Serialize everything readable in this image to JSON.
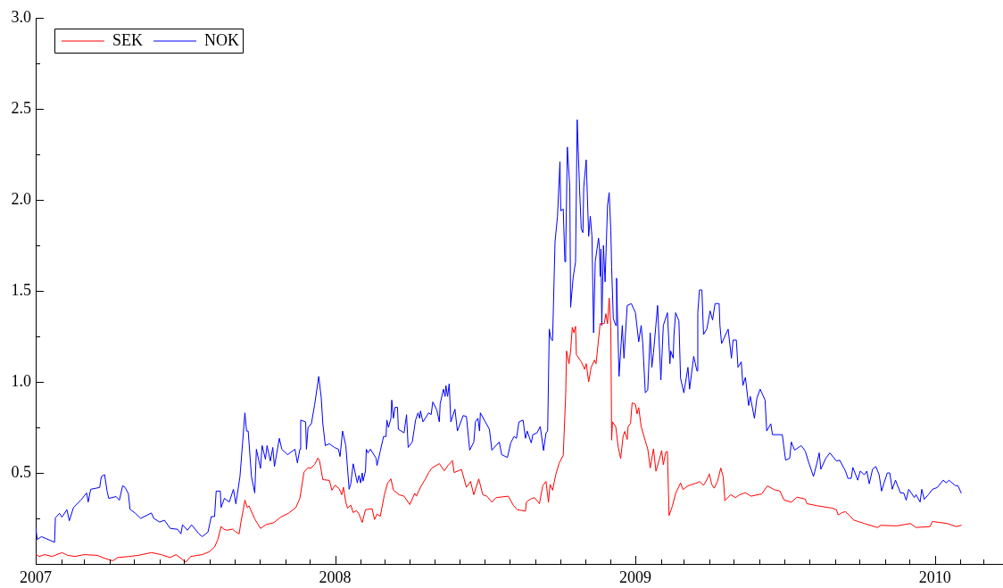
{
  "chart_data": {
    "type": "line",
    "series": [
      {
        "name": "SEK",
        "color": "#ff0000",
        "x": [
          "2007-01-01",
          "2007-01-05",
          "2007-01-12",
          "2007-01-21",
          "2007-02-02",
          "2007-02-09",
          "2007-02-18",
          "2007-03-01",
          "2007-03-17",
          "2007-03-26",
          "2007-04-05",
          "2007-04-11",
          "2007-04-25",
          "2007-05-06",
          "2007-05-22",
          "2007-06-03",
          "2007-06-14",
          "2007-06-21",
          "2007-07-03",
          "2007-07-09",
          "2007-07-23",
          "2007-08-01",
          "2007-08-07",
          "2007-08-11",
          "2007-08-15",
          "2007-08-18",
          "2007-08-22",
          "2007-08-29",
          "2007-09-01",
          "2007-09-06",
          "2007-09-08",
          "2007-09-11",
          "2007-09-13",
          "2007-09-16",
          "2007-09-18",
          "2007-09-25",
          "2007-10-02",
          "2007-10-09",
          "2007-10-18",
          "2007-10-27",
          "2007-11-05",
          "2007-11-14",
          "2007-11-19",
          "2007-11-24",
          "2007-11-29",
          "2007-12-02",
          "2007-12-07",
          "2007-12-11",
          "2007-12-13",
          "2007-12-17",
          "2007-12-25",
          "2007-12-28",
          "2008-01-01",
          "2008-01-06",
          "2008-01-09",
          "2008-01-11",
          "2008-01-14",
          "2008-01-16",
          "2008-01-20",
          "2008-01-23",
          "2008-01-27",
          "2008-01-30",
          "2008-02-03",
          "2008-02-07",
          "2008-02-15",
          "2008-02-18",
          "2008-02-21",
          "2008-02-25",
          "2008-03-01",
          "2008-03-05",
          "2008-03-09",
          "2008-03-12",
          "2008-03-19",
          "2008-03-25",
          "2008-04-01",
          "2008-04-07",
          "2008-04-09",
          "2008-04-14",
          "2008-04-20",
          "2008-04-24",
          "2008-04-28",
          "2008-05-07",
          "2008-05-13",
          "2008-05-18",
          "2008-05-23",
          "2008-05-25",
          "2008-06-03",
          "2008-06-09",
          "2008-06-14",
          "2008-06-18",
          "2008-06-24",
          "2008-06-29",
          "2008-07-04",
          "2008-07-10",
          "2008-07-15",
          "2008-07-30",
          "2008-08-05",
          "2008-08-10",
          "2008-08-20",
          "2008-08-21",
          "2008-08-26",
          "2008-08-31",
          "2008-09-06",
          "2008-09-10",
          "2008-09-14",
          "2008-09-17",
          "2008-09-19",
          "2008-09-22",
          "2008-09-26",
          "2008-09-30",
          "2008-10-05",
          "2008-10-08",
          "2008-10-09",
          "2008-10-12",
          "2008-10-14",
          "2008-10-16",
          "2008-10-18",
          "2008-10-20",
          "2008-10-21",
          "2008-10-27",
          "2008-10-31",
          "2008-11-02",
          "2008-11-05",
          "2008-11-08",
          "2008-11-12",
          "2008-11-14",
          "2008-11-19",
          "2008-11-24",
          "2008-11-26",
          "2008-11-28",
          "2008-11-30",
          "2008-12-02",
          "2008-12-03",
          "2008-12-04",
          "2008-12-08",
          "2008-12-11",
          "2008-12-14",
          "2008-12-17",
          "2008-12-19",
          "2008-12-22",
          "2008-12-23",
          "2008-12-26",
          "2008-12-28",
          "2009-01-01",
          "2009-01-03",
          "2009-01-05",
          "2009-01-08",
          "2009-01-13",
          "2009-01-16",
          "2009-01-19",
          "2009-01-23",
          "2009-01-26",
          "2009-01-30",
          "2009-02-02",
          "2009-02-04",
          "2009-02-07",
          "2009-02-09",
          "2009-02-11",
          "2009-02-15",
          "2009-02-19",
          "2009-02-25",
          "2009-02-28",
          "2009-03-06",
          "2009-03-17",
          "2009-03-20",
          "2009-03-25",
          "2009-03-29",
          "2009-04-01",
          "2009-04-04",
          "2009-04-07",
          "2009-04-11",
          "2009-04-15",
          "2009-04-18",
          "2009-04-20",
          "2009-04-27",
          "2009-05-03",
          "2009-05-08",
          "2009-05-15",
          "2009-05-22",
          "2009-06-04",
          "2009-06-11",
          "2009-06-19",
          "2009-06-26",
          "2009-07-01",
          "2009-07-10",
          "2009-07-17",
          "2009-07-27",
          "2009-07-29",
          "2009-08-10",
          "2009-08-28",
          "2009-09-03",
          "2009-09-05",
          "2009-09-10",
          "2009-09-14",
          "2009-09-19",
          "2009-09-24",
          "2009-10-07",
          "2009-10-23",
          "2009-10-27",
          "2009-11-16",
          "2009-12-02",
          "2009-12-09",
          "2009-12-26",
          "2009-12-29",
          "2010-01-16",
          "2010-01-27",
          "2010-02-02"
        ],
        "values": [
          0.055,
          0.041,
          0.051,
          0.041,
          0.062,
          0.047,
          0.041,
          0.051,
          0.047,
          0.031,
          0.017,
          0.035,
          0.041,
          0.047,
          0.062,
          0.051,
          0.035,
          0.051,
          0.01,
          0.041,
          0.051,
          0.068,
          0.093,
          0.134,
          0.206,
          0.191,
          0.185,
          0.191,
          0.179,
          0.165,
          0.226,
          0.298,
          0.35,
          0.309,
          0.319,
          0.247,
          0.195,
          0.216,
          0.226,
          0.258,
          0.278,
          0.309,
          0.36,
          0.504,
          0.529,
          0.525,
          0.546,
          0.582,
          0.566,
          0.463,
          0.459,
          0.405,
          0.432,
          0.413,
          0.38,
          0.421,
          0.339,
          0.307,
          0.323,
          0.282,
          0.293,
          0.274,
          0.228,
          0.298,
          0.303,
          0.244,
          0.274,
          0.261,
          0.38,
          0.445,
          0.467,
          0.405,
          0.38,
          0.372,
          0.326,
          0.388,
          0.372,
          0.421,
          0.467,
          0.502,
          0.527,
          0.551,
          0.511,
          0.543,
          0.568,
          0.502,
          0.519,
          0.421,
          0.453,
          0.38,
          0.467,
          0.38,
          0.372,
          0.339,
          0.364,
          0.372,
          0.323,
          0.298,
          0.29,
          0.339,
          0.356,
          0.364,
          0.331,
          0.429,
          0.453,
          0.339,
          0.437,
          0.405,
          0.492,
          0.553,
          0.597,
          0.93,
          1.17,
          1.1,
          1.17,
          1.3,
          1.27,
          1.305,
          1.15,
          1.11,
          1.07,
          1.1,
          1.0,
          1.08,
          1.12,
          1.1,
          1.32,
          1.32,
          1.375,
          1.32,
          1.46,
          1.3,
          0.68,
          0.78,
          0.754,
          0.641,
          0.579,
          0.702,
          0.728,
          0.684,
          0.754,
          0.772,
          0.885,
          0.877,
          0.824,
          0.859,
          0.754,
          0.676,
          0.632,
          0.527,
          0.632,
          0.509,
          0.571,
          0.623,
          0.545,
          0.615,
          0.617,
          0.266,
          0.317,
          0.388,
          0.445,
          0.408,
          0.429,
          0.445,
          0.453,
          0.432,
          0.462,
          0.494,
          0.437,
          0.416,
          0.453,
          0.527,
          0.478,
          0.347,
          0.38,
          0.364,
          0.38,
          0.391,
          0.372,
          0.385,
          0.429,
          0.408,
          0.401,
          0.352,
          0.339,
          0.367,
          0.356,
          0.331,
          0.32,
          0.307,
          0.298,
          0.269,
          0.282,
          0.287,
          0.266,
          0.241,
          0.222,
          0.2,
          0.212,
          0.209,
          0.222,
          0.2,
          0.205,
          0.233,
          0.222,
          0.205,
          0.212
        ]
      },
      {
        "name": "NOK",
        "color": "#0000ff",
        "x": [
          "2007-01-01",
          "2007-01-03",
          "2007-01-08",
          "2007-01-24",
          "2007-01-25",
          "2007-01-30",
          "2007-02-02",
          "2007-02-08",
          "2007-02-11",
          "2007-02-16",
          "2007-02-25",
          "2007-03-04",
          "2007-03-06",
          "2007-03-09",
          "2007-03-20",
          "2007-03-22",
          "2007-03-26",
          "2007-03-29",
          "2007-03-31",
          "2007-04-09",
          "2007-04-13",
          "2007-04-17",
          "2007-04-20",
          "2007-04-24",
          "2007-04-26",
          "2007-05-02",
          "2007-05-09",
          "2007-05-22",
          "2007-05-25",
          "2007-06-01",
          "2007-06-07",
          "2007-06-14",
          "2007-06-23",
          "2007-06-27",
          "2007-06-29",
          "2007-07-05",
          "2007-07-10",
          "2007-07-19",
          "2007-07-23",
          "2007-07-30",
          "2007-08-03",
          "2007-08-07",
          "2007-08-09",
          "2007-08-14",
          "2007-08-15",
          "2007-08-19",
          "2007-08-25",
          "2007-08-30",
          "2007-09-02",
          "2007-09-07",
          "2007-09-13",
          "2007-09-15",
          "2007-09-17",
          "2007-09-21",
          "2007-09-25",
          "2007-09-27",
          "2007-10-02",
          "2007-10-04",
          "2007-10-08",
          "2007-10-10",
          "2007-10-14",
          "2007-10-17",
          "2007-10-19",
          "2007-10-25",
          "2007-10-28",
          "2007-11-04",
          "2007-11-13",
          "2007-11-16",
          "2007-11-19",
          "2007-11-20",
          "2007-11-26",
          "2007-11-27",
          "2007-11-29",
          "2007-12-03",
          "2007-12-07",
          "2007-12-12",
          "2007-12-15",
          "2007-12-17",
          "2007-12-20",
          "2007-12-25",
          "2007-12-31",
          "2008-01-05",
          "2008-01-07",
          "2008-01-10",
          "2008-01-14",
          "2008-01-18",
          "2008-01-20",
          "2008-01-23",
          "2008-01-28",
          "2008-01-30",
          "2008-02-01",
          "2008-02-03",
          "2008-02-04",
          "2008-02-07",
          "2008-02-08",
          "2008-02-10",
          "2008-02-13",
          "2008-02-20",
          "2008-02-21",
          "2008-02-25",
          "2008-02-29",
          "2008-03-03",
          "2008-03-04",
          "2008-03-06",
          "2008-03-09",
          "2008-03-10",
          "2008-03-12",
          "2008-03-14",
          "2008-03-17",
          "2008-03-18",
          "2008-03-25",
          "2008-03-28",
          "2008-03-30",
          "2008-04-04",
          "2008-04-08",
          "2008-04-11",
          "2008-04-13",
          "2008-04-14",
          "2008-04-17",
          "2008-04-24",
          "2008-04-27",
          "2008-04-29",
          "2008-05-04",
          "2008-05-07",
          "2008-05-08",
          "2008-05-12",
          "2008-05-14",
          "2008-05-15",
          "2008-05-17",
          "2008-05-19",
          "2008-05-21",
          "2008-05-26",
          "2008-05-29",
          "2008-06-05",
          "2008-06-09",
          "2008-06-13",
          "2008-06-18",
          "2008-06-20",
          "2008-06-23",
          "2008-06-25",
          "2008-06-26",
          "2008-07-02",
          "2008-07-07",
          "2008-07-10",
          "2008-07-19",
          "2008-07-22",
          "2008-07-29",
          "2008-08-02",
          "2008-08-06",
          "2008-08-09",
          "2008-08-12",
          "2008-08-17",
          "2008-08-20",
          "2008-08-22",
          "2008-08-27",
          "2008-08-29",
          "2008-09-03",
          "2008-09-07",
          "2008-09-11",
          "2008-09-14",
          "2008-09-16",
          "2008-09-18",
          "2008-09-20",
          "2008-09-22",
          "2008-09-25",
          "2008-09-28",
          "2008-10-01",
          "2008-10-02",
          "2008-10-05",
          "2008-10-07",
          "2008-10-08",
          "2008-10-10",
          "2008-10-13",
          "2008-10-14",
          "2008-10-17",
          "2008-10-20",
          "2008-10-22",
          "2008-10-25",
          "2008-10-27",
          "2008-10-29",
          "2008-10-30",
          "2008-11-02",
          "2008-11-05",
          "2008-11-07",
          "2008-11-09",
          "2008-11-11",
          "2008-11-13",
          "2008-11-17",
          "2008-11-18",
          "2008-11-19",
          "2008-11-20",
          "2008-11-21",
          "2008-11-23",
          "2008-11-25",
          "2008-11-28",
          "2008-11-30",
          "2008-12-02",
          "2008-12-03",
          "2008-12-05",
          "2008-12-08",
          "2008-12-09",
          "2008-12-12",
          "2008-12-16",
          "2008-12-18",
          "2008-12-22",
          "2008-12-27",
          "2009-01-01",
          "2009-01-05",
          "2009-01-08",
          "2009-01-10",
          "2009-01-13",
          "2009-01-16",
          "2009-01-19",
          "2009-01-21",
          "2009-01-23",
          "2009-01-28",
          "2009-02-01",
          "2009-02-04",
          "2009-02-09",
          "2009-02-12",
          "2009-02-13",
          "2009-02-16",
          "2009-02-17",
          "2009-02-19",
          "2009-02-23",
          "2009-02-25",
          "2009-03-01",
          "2009-03-06",
          "2009-03-08",
          "2009-03-13",
          "2009-03-17",
          "2009-03-18",
          "2009-03-20",
          "2009-03-23",
          "2009-03-25",
          "2009-03-29",
          "2009-04-02",
          "2009-04-05",
          "2009-04-08",
          "2009-04-13",
          "2009-04-14",
          "2009-04-16",
          "2009-04-24",
          "2009-04-28",
          "2009-04-30",
          "2009-05-04",
          "2009-05-06",
          "2009-05-10",
          "2009-05-12",
          "2009-05-15",
          "2009-05-19",
          "2009-05-21",
          "2009-05-26",
          "2009-05-29",
          "2009-06-02",
          "2009-06-08",
          "2009-06-10",
          "2009-06-15",
          "2009-06-17",
          "2009-06-29",
          "2009-07-03",
          "2009-07-08",
          "2009-07-10",
          "2009-07-14",
          "2009-07-22",
          "2009-07-27",
          "2009-07-31",
          "2009-08-06",
          "2009-08-10",
          "2009-08-13",
          "2009-08-15",
          "2009-08-21",
          "2009-08-26",
          "2009-09-03",
          "2009-09-07",
          "2009-09-14",
          "2009-09-17",
          "2009-09-21",
          "2009-09-23",
          "2009-09-29",
          "2009-10-02",
          "2009-10-07",
          "2009-10-10",
          "2009-10-13",
          "2009-10-17",
          "2009-10-21",
          "2009-10-25",
          "2009-10-28",
          "2009-10-31",
          "2009-11-04",
          "2009-11-07",
          "2009-11-10",
          "2009-11-14",
          "2009-11-20",
          "2009-11-24",
          "2009-11-27",
          "2009-11-30",
          "2009-12-07",
          "2009-12-09",
          "2009-12-14",
          "2009-12-16",
          "2009-12-19",
          "2009-12-24",
          "2009-12-29",
          "2010-01-04",
          "2010-01-11",
          "2010-01-15",
          "2010-01-18",
          "2010-01-26",
          "2010-01-29",
          "2010-02-02"
        ],
        "values": [
          0.195,
          0.134,
          0.15,
          0.119,
          0.253,
          0.278,
          0.257,
          0.298,
          0.237,
          0.309,
          0.35,
          0.39,
          0.34,
          0.41,
          0.42,
          0.48,
          0.49,
          0.4,
          0.36,
          0.37,
          0.35,
          0.43,
          0.42,
          0.385,
          0.3,
          0.28,
          0.25,
          0.28,
          0.25,
          0.23,
          0.24,
          0.195,
          0.19,
          0.165,
          0.215,
          0.185,
          0.215,
          0.165,
          0.15,
          0.175,
          0.26,
          0.26,
          0.4,
          0.4,
          0.31,
          0.36,
          0.34,
          0.41,
          0.33,
          0.48,
          0.83,
          0.73,
          0.73,
          0.48,
          0.39,
          0.63,
          0.525,
          0.65,
          0.575,
          0.65,
          0.565,
          0.64,
          0.535,
          0.69,
          0.63,
          0.6,
          0.63,
          0.555,
          0.63,
          0.79,
          0.78,
          0.63,
          0.75,
          0.77,
          0.875,
          1.03,
          0.915,
          0.77,
          0.65,
          0.66,
          0.64,
          0.63,
          0.59,
          0.73,
          0.65,
          0.41,
          0.44,
          0.55,
          0.445,
          0.486,
          0.445,
          0.5,
          0.455,
          0.51,
          0.63,
          0.61,
          0.63,
          0.58,
          0.54,
          0.62,
          0.7,
          0.7,
          0.79,
          0.75,
          0.8,
          0.9,
          0.8,
          0.86,
          0.86,
          0.74,
          0.72,
          0.82,
          0.64,
          0.67,
          0.79,
          0.83,
          0.8,
          0.84,
          0.78,
          0.83,
          0.82,
          0.89,
          0.845,
          0.78,
          0.88,
          0.96,
          0.92,
          0.98,
          0.92,
          0.99,
          0.78,
          0.85,
          0.73,
          0.815,
          0.81,
          0.625,
          0.67,
          0.78,
          0.8,
          0.73,
          0.83,
          0.78,
          0.74,
          0.625,
          0.67,
          0.6,
          0.585,
          0.665,
          0.7,
          0.69,
          0.78,
          0.79,
          0.69,
          0.73,
          0.665,
          0.71,
          0.72,
          0.755,
          0.623,
          0.72,
          0.73,
          1.29,
          1.235,
          1.227,
          1.77,
          1.91,
          2.21,
          1.94,
          1.95,
          1.66,
          1.72,
          2.29,
          2.07,
          1.41,
          1.57,
          1.66,
          2.44,
          2.05,
          1.84,
          1.82,
          2.07,
          2.22,
          1.8,
          1.91,
          1.8,
          1.27,
          1.66,
          1.79,
          1.75,
          1.58,
          1.73,
          1.31,
          1.75,
          1.55,
          1.97,
          2.04,
          1.83,
          1.63,
          1.35,
          1.31,
          1.57,
          1.03,
          1.31,
          1.13,
          1.42,
          1.43,
          1.38,
          1.22,
          1.31,
          1.21,
          0.94,
          0.955,
          1.27,
          1.08,
          1.16,
          1.42,
          1.01,
          1.31,
          1.38,
          1.1,
          1.17,
          1.13,
          1.26,
          1.38,
          1.335,
          1.02,
          0.94,
          1.08,
          0.96,
          1.14,
          1.06,
          1.38,
          1.505,
          1.505,
          1.26,
          1.29,
          1.39,
          1.34,
          1.43,
          1.43,
          1.31,
          1.21,
          1.29,
          1.13,
          1.23,
          1.23,
          1.08,
          1.11,
          0.98,
          1.025,
          0.87,
          0.92,
          0.8,
          0.91,
          0.96,
          0.9,
          0.73,
          0.77,
          0.71,
          0.71,
          0.57,
          0.58,
          0.67,
          0.625,
          0.65,
          0.62,
          0.56,
          0.48,
          0.55,
          0.61,
          0.52,
          0.58,
          0.61,
          0.565,
          0.57,
          0.51,
          0.47,
          0.47,
          0.53,
          0.46,
          0.51,
          0.49,
          0.51,
          0.44,
          0.52,
          0.535,
          0.49,
          0.4,
          0.445,
          0.5,
          0.5,
          0.41,
          0.46,
          0.39,
          0.39,
          0.35,
          0.41,
          0.365,
          0.38,
          0.34,
          0.41,
          0.355,
          0.38,
          0.41,
          0.42,
          0.46,
          0.445,
          0.46,
          0.43,
          0.43,
          0.39
        ]
      }
    ],
    "xlim": [
      "2007-01-01",
      "2010-03-25"
    ],
    "xticks": [
      {
        "value": "2007",
        "label": "2007"
      },
      {
        "value": "2007-02",
        "label": null
      },
      {
        "value": "2007-03",
        "label": null
      },
      {
        "value": "2007-04",
        "label": null
      },
      {
        "value": "2007-05",
        "label": null
      },
      {
        "value": "2007-06",
        "label": null
      },
      {
        "value": "2007-07",
        "label": null
      },
      {
        "value": "2007-08",
        "label": null
      },
      {
        "value": "2007-09",
        "label": null
      },
      {
        "value": "2007-10",
        "label": null
      },
      {
        "value": "2007-11",
        "label": null
      },
      {
        "value": "2007-12",
        "label": null
      },
      {
        "value": "2008",
        "label": "2008"
      },
      {
        "value": "2008-02",
        "label": null
      },
      {
        "value": "2008-03",
        "label": null
      },
      {
        "value": "2008-04",
        "label": null
      },
      {
        "value": "2008-05",
        "label": null
      },
      {
        "value": "2008-06",
        "label": null
      },
      {
        "value": "2008-07",
        "label": null
      },
      {
        "value": "2008-08",
        "label": null
      },
      {
        "value": "2008-09",
        "label": null
      },
      {
        "value": "2008-10",
        "label": null
      },
      {
        "value": "2008-11",
        "label": null
      },
      {
        "value": "2008-12",
        "label": null
      },
      {
        "value": "2009",
        "label": "2009"
      },
      {
        "value": "2009-02",
        "label": null
      },
      {
        "value": "2009-03",
        "label": null
      },
      {
        "value": "2009-04",
        "label": null
      },
      {
        "value": "2009-05",
        "label": null
      },
      {
        "value": "2009-06",
        "label": null
      },
      {
        "value": "2009-07",
        "label": null
      },
      {
        "value": "2009-08",
        "label": null
      },
      {
        "value": "2009-09",
        "label": null
      },
      {
        "value": "2009-10",
        "label": null
      },
      {
        "value": "2009-11",
        "label": null
      },
      {
        "value": "2009-12",
        "label": null
      },
      {
        "value": "2010",
        "label": "2010"
      },
      {
        "value": "2010-02",
        "label": null
      },
      {
        "value": "2010-03",
        "label": null
      }
    ],
    "ylim": [
      0,
      3
    ],
    "yticks": [
      {
        "value": 0.25,
        "label": null
      },
      0.5,
      {
        "value": 0.75,
        "label": null
      },
      {
        "value": 1,
        "label": "1.0"
      },
      {
        "value": 1.25,
        "label": null
      },
      1.5,
      {
        "value": 1.75,
        "label": null
      },
      {
        "value": 2,
        "label": "2.0"
      },
      {
        "value": 2.25,
        "label": null
      },
      2.5,
      {
        "value": 2.75,
        "label": null
      },
      {
        "value": 3,
        "label": "3.0"
      }
    ],
    "legend": "top left"
  }
}
